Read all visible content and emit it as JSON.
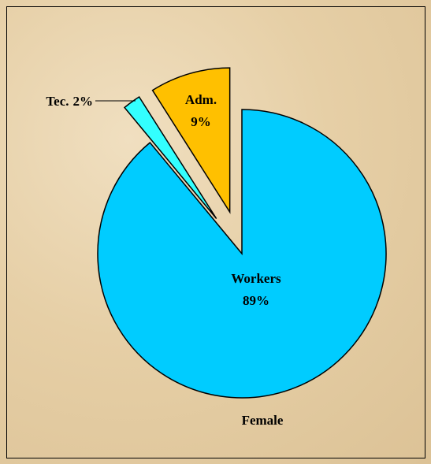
{
  "chart_data": {
    "type": "pie",
    "title": "Female",
    "categories": [
      "Workers",
      "Tec.",
      "Adm."
    ],
    "values": [
      89,
      2,
      9
    ],
    "value_labels": [
      "89%",
      "2%",
      "9%"
    ],
    "colors": [
      "#00ccff",
      "#33ffff",
      "#ffc000"
    ]
  }
}
